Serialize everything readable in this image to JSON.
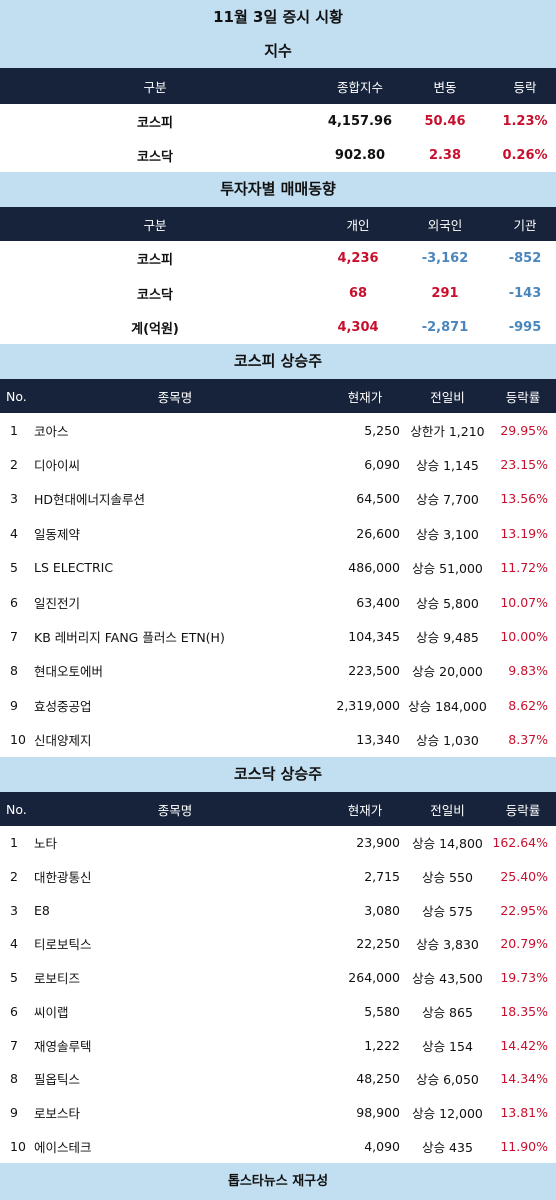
{
  "title": "11월 3일 증시 시황",
  "index": {
    "section_title": "지수",
    "headers": [
      "구분",
      "종합지수",
      "변동",
      "등락"
    ],
    "rows": [
      {
        "name": "코스피",
        "value": "4,157.96",
        "change": "50.46",
        "rate": "1.23%"
      },
      {
        "name": "코스닥",
        "value": "902.80",
        "change": "2.38",
        "rate": "0.26%"
      }
    ]
  },
  "investor": {
    "section_title": "투자자별 매매동향",
    "headers": [
      "구분",
      "개인",
      "외국인",
      "기관"
    ],
    "rows": [
      {
        "name": "코스피",
        "individual": "4,236",
        "foreign": "-3,162",
        "institution": "-852"
      },
      {
        "name": "코스닥",
        "individual": "68",
        "foreign": "291",
        "institution": "-143"
      },
      {
        "name": "계(억원)",
        "individual": "4,304",
        "foreign": "-2,871",
        "institution": "-995"
      }
    ]
  },
  "kospi_gainers": {
    "section_title": "코스피 상승주",
    "headers": [
      "No.",
      "종목명",
      "현재가",
      "전일비",
      "등락률"
    ],
    "rows": [
      {
        "no": "1",
        "name": "코아스",
        "price": "5,250",
        "change": "상한가 1,210",
        "rate": "29.95%"
      },
      {
        "no": "2",
        "name": "디아이씨",
        "price": "6,090",
        "change": "상승 1,145",
        "rate": "23.15%"
      },
      {
        "no": "3",
        "name": "HD현대에너지솔루션",
        "price": "64,500",
        "change": "상승 7,700",
        "rate": "13.56%"
      },
      {
        "no": "4",
        "name": "일동제약",
        "price": "26,600",
        "change": "상승 3,100",
        "rate": "13.19%"
      },
      {
        "no": "5",
        "name": "LS ELECTRIC",
        "price": "486,000",
        "change": "상승 51,000",
        "rate": "11.72%"
      },
      {
        "no": "6",
        "name": "일진전기",
        "price": "63,400",
        "change": "상승 5,800",
        "rate": "10.07%"
      },
      {
        "no": "7",
        "name": "KB 레버리지 FANG 플러스 ETN(H)",
        "price": "104,345",
        "change": "상승 9,485",
        "rate": "10.00%"
      },
      {
        "no": "8",
        "name": "현대오토에버",
        "price": "223,500",
        "change": "상승 20,000",
        "rate": "9.83%"
      },
      {
        "no": "9",
        "name": "효성중공업",
        "price": "2,319,000",
        "change": "상승 184,000",
        "rate": "8.62%"
      },
      {
        "no": "10",
        "name": "신대양제지",
        "price": "13,340",
        "change": "상승 1,030",
        "rate": "8.37%"
      }
    ]
  },
  "kosdaq_gainers": {
    "section_title": "코스닥 상승주",
    "headers": [
      "No.",
      "종목명",
      "현재가",
      "전일비",
      "등락률"
    ],
    "rows": [
      {
        "no": "1",
        "name": "노타",
        "price": "23,900",
        "change": "상승 14,800",
        "rate": "162.64%"
      },
      {
        "no": "2",
        "name": "대한광통신",
        "price": "2,715",
        "change": "상승 550",
        "rate": "25.40%"
      },
      {
        "no": "3",
        "name": "E8",
        "price": "3,080",
        "change": "상승 575",
        "rate": "22.95%"
      },
      {
        "no": "4",
        "name": "티로보틱스",
        "price": "22,250",
        "change": "상승 3,830",
        "rate": "20.79%"
      },
      {
        "no": "5",
        "name": "로보티즈",
        "price": "264,000",
        "change": "상승 43,500",
        "rate": "19.73%"
      },
      {
        "no": "6",
        "name": "씨이랩",
        "price": "5,580",
        "change": "상승 865",
        "rate": "18.35%"
      },
      {
        "no": "7",
        "name": "재영솔루텍",
        "price": "1,222",
        "change": "상승 154",
        "rate": "14.42%"
      },
      {
        "no": "8",
        "name": "필옵틱스",
        "price": "48,250",
        "change": "상승 6,050",
        "rate": "14.34%"
      },
      {
        "no": "9",
        "name": "로보스타",
        "price": "98,900",
        "change": "상승 12,000",
        "rate": "13.81%"
      },
      {
        "no": "10",
        "name": "에이스테크",
        "price": "4,090",
        "change": "상승 435",
        "rate": "11.90%"
      }
    ]
  },
  "footer": "톱스타뉴스 재구성",
  "colors": {
    "header_bg": "#16233a",
    "section_bg": "#c2dff2",
    "up": "#c8102e",
    "down": "#4a86bd"
  }
}
